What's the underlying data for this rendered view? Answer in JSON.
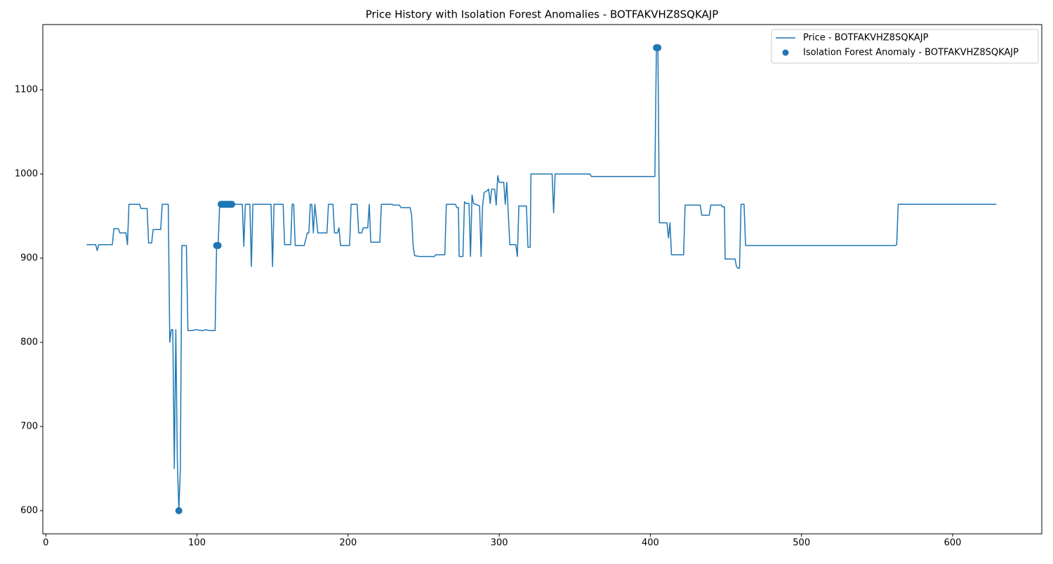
{
  "chart_data": {
    "type": "line",
    "title": "Price History with Isolation Forest Anomalies - BOTFAKVHZ8SQKAJP",
    "xlim": [
      -2,
      659
    ],
    "ylim": [
      572.5,
      1177.5
    ],
    "xticks": [
      0,
      100,
      200,
      300,
      400,
      500,
      600
    ],
    "yticks": [
      600,
      700,
      800,
      900,
      1000,
      1100
    ],
    "grid": false,
    "legend": "upper right",
    "series": [
      {
        "name": "Price - BOTFAKVHZ8SQKAJP",
        "type": "line",
        "color": "#1f77b4",
        "x": [
          27,
          33,
          34,
          35,
          44,
          45,
          48,
          49,
          53,
          54,
          55,
          62,
          63,
          67,
          68,
          70,
          71,
          76,
          77,
          81,
          82,
          83,
          84,
          85,
          86,
          87,
          88,
          89,
          90,
          93,
          94,
          97,
          99,
          104,
          106,
          108,
          112,
          113,
          114,
          115,
          123,
          130,
          131,
          132,
          135,
          136,
          137,
          149,
          150,
          151,
          157,
          158,
          162,
          163,
          164,
          165,
          171,
          173,
          174,
          175,
          176,
          177,
          178,
          180,
          186,
          187,
          190,
          191,
          193,
          194,
          195,
          201,
          202,
          206,
          207,
          209,
          210,
          213,
          214,
          215,
          221,
          222,
          229,
          230,
          234,
          235,
          241,
          242,
          243,
          244,
          247,
          257,
          258,
          264,
          265,
          271,
          272,
          273,
          273.5,
          276,
          277,
          278,
          280,
          281,
          282,
          283,
          287,
          288,
          289,
          290,
          292,
          293,
          294,
          295,
          297,
          298,
          299,
          300,
          303,
          304,
          305,
          307,
          311,
          312,
          313,
          318,
          319,
          320.5,
          321,
          335,
          336,
          337,
          360,
          361,
          403,
          404,
          405,
          406,
          411,
          412,
          413,
          414,
          422,
          423,
          433,
          434,
          439,
          440,
          447,
          447.5,
          449,
          449.5,
          456,
          457,
          458,
          459,
          460,
          462,
          463,
          562,
          563,
          564,
          629
        ],
        "values": [
          916,
          916,
          909,
          916,
          916,
          935,
          935,
          930,
          930,
          916,
          964,
          964,
          959,
          959,
          918,
          918,
          934,
          934,
          964,
          964,
          800,
          815,
          815,
          650,
          815,
          660,
          600,
          650,
          915,
          915,
          814,
          814,
          815,
          814,
          815,
          814,
          814,
          915,
          915,
          964,
          964,
          964,
          914,
          964,
          964,
          890,
          964,
          964,
          890,
          964,
          964,
          916,
          916,
          964,
          964,
          915,
          915,
          930,
          930,
          964,
          964,
          930,
          964,
          930,
          930,
          964,
          964,
          930,
          930,
          936,
          915,
          915,
          964,
          964,
          930,
          930,
          936,
          936,
          964,
          919,
          919,
          964,
          964,
          963,
          963,
          960,
          960,
          952,
          915,
          903,
          902,
          902,
          904,
          904,
          964,
          964,
          960,
          960,
          902,
          902,
          967,
          965,
          965,
          902,
          975,
          965,
          962,
          902,
          962,
          978,
          980,
          982,
          965,
          982,
          982,
          963,
          998,
          990,
          990,
          964,
          990,
          916,
          916,
          902,
          962,
          962,
          913,
          913,
          1000,
          1000,
          954,
          1000,
          1000,
          997,
          997,
          1150,
          1150,
          942,
          942,
          924,
          942,
          904,
          904,
          963,
          963,
          951,
          951,
          963,
          963,
          961,
          961,
          899,
          899,
          890,
          888,
          888,
          964,
          964,
          915,
          915,
          916,
          964,
          964
        ]
      },
      {
        "name": "Isolation Forest Anomaly - BOTFAKVHZ8SQKAJP",
        "type": "scatter",
        "color": "#1f77b4",
        "x": [
          88,
          113,
          114,
          116,
          117,
          118,
          119,
          120,
          121,
          122,
          123,
          404,
          405
        ],
        "values": [
          600,
          915,
          915,
          964,
          964,
          964,
          964,
          964,
          964,
          964,
          964,
          1150,
          1150
        ]
      }
    ]
  }
}
